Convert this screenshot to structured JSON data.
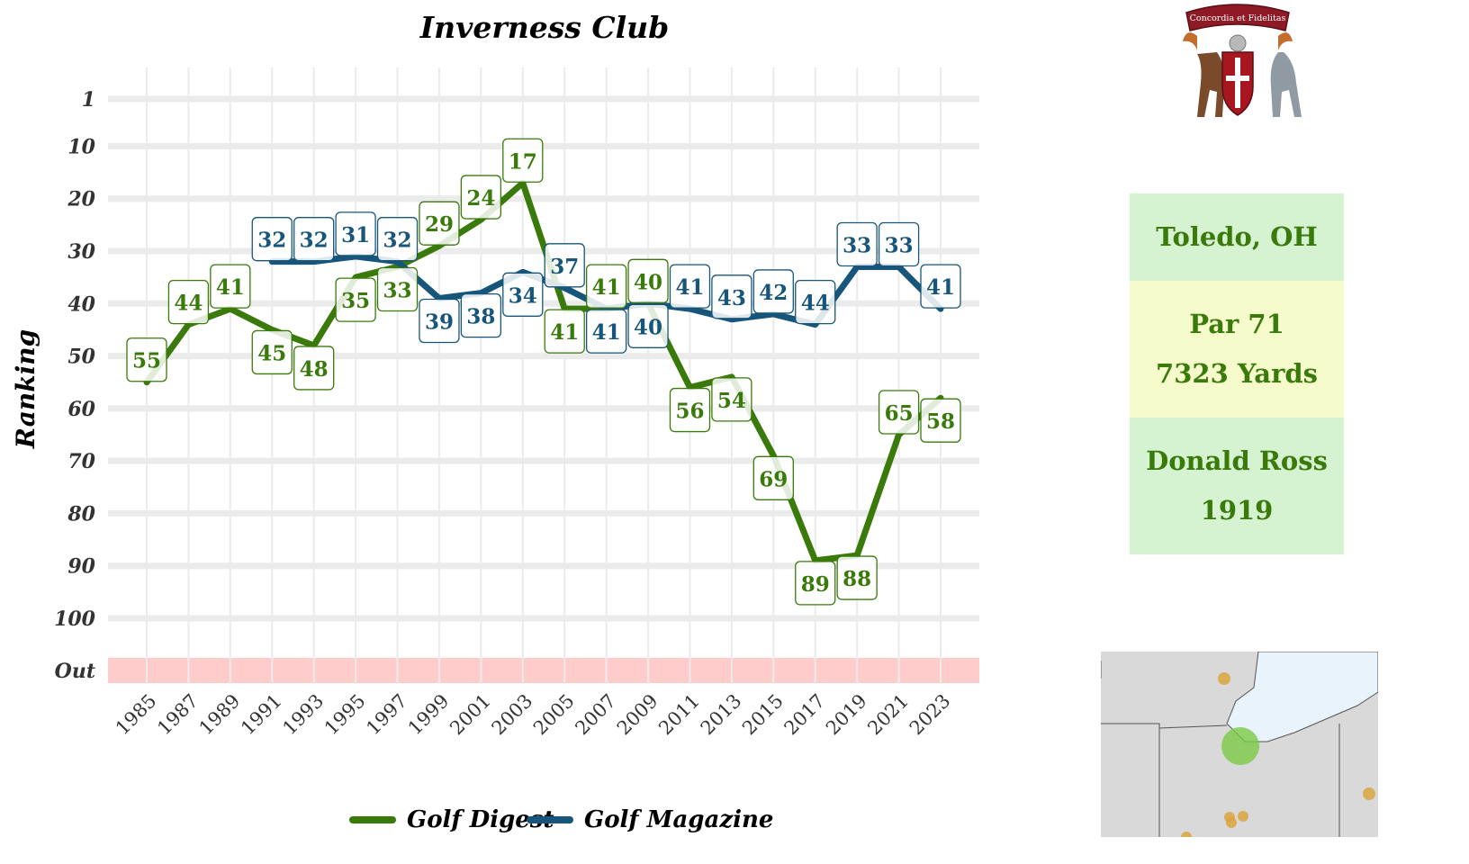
{
  "page": {
    "crest_motto": "Concordia et Fidelitas"
  },
  "info": {
    "location": "Toledo, OH",
    "par": "Par 71",
    "yards": "7323 Yards",
    "architect": "Donald Ross",
    "year": "1919"
  },
  "colors": {
    "golf_digest": "#3a7a0b",
    "golf_magazine": "#17567a",
    "out_band": "#ffcccc",
    "grid": "#ebebeb",
    "panel_green": "#d5f2d1",
    "panel_yellow": "#f6fbcb",
    "map_land": "#d9d9d9",
    "map_water": "#e8f3fc",
    "map_marker_current": "#7ac943",
    "map_marker_other": "#d9a53f"
  },
  "chart_data": {
    "type": "line",
    "title": "Inverness Club",
    "xlabel": "",
    "ylabel": "Ranking",
    "y_reversed": true,
    "ylim": [
      1,
      100
    ],
    "y_ticks": [
      "1",
      "10",
      "20",
      "30",
      "40",
      "50",
      "60",
      "70",
      "80",
      "90",
      "100",
      "Out"
    ],
    "x_ticks": [
      "1985",
      "1987",
      "1989",
      "1991",
      "1993",
      "1995",
      "1997",
      "1999",
      "2001",
      "2003",
      "2005",
      "2007",
      "2009",
      "2011",
      "2013",
      "2015",
      "2017",
      "2019",
      "2021",
      "2023"
    ],
    "legend_position": "bottom",
    "grid": true,
    "series": [
      {
        "name": "Golf Digest",
        "points": [
          {
            "x": 1985,
            "y": 55
          },
          {
            "x": 1987,
            "y": 44
          },
          {
            "x": 1989,
            "y": 41
          },
          {
            "x": 1991,
            "y": 45
          },
          {
            "x": 1993,
            "y": 48
          },
          {
            "x": 1995,
            "y": 35
          },
          {
            "x": 1997,
            "y": 33
          },
          {
            "x": 1999,
            "y": 29
          },
          {
            "x": 2001,
            "y": 24
          },
          {
            "x": 2003,
            "y": 17
          },
          {
            "x": 2005,
            "y": 41
          },
          {
            "x": 2007,
            "y": 41
          },
          {
            "x": 2009,
            "y": 40
          },
          {
            "x": 2011,
            "y": 56
          },
          {
            "x": 2013,
            "y": 54
          },
          {
            "x": 2015,
            "y": 69
          },
          {
            "x": 2017,
            "y": 89
          },
          {
            "x": 2019,
            "y": 88
          },
          {
            "x": 2021,
            "y": 65
          },
          {
            "x": 2023,
            "y": 58
          }
        ]
      },
      {
        "name": "Golf Magazine",
        "points": [
          {
            "x": 1991,
            "y": 32
          },
          {
            "x": 1993,
            "y": 32
          },
          {
            "x": 1995,
            "y": 31
          },
          {
            "x": 1997,
            "y": 32
          },
          {
            "x": 1999,
            "y": 39
          },
          {
            "x": 2001,
            "y": 38
          },
          {
            "x": 2003,
            "y": 34
          },
          {
            "x": 2005,
            "y": 37
          },
          {
            "x": 2007,
            "y": 41
          },
          {
            "x": 2009,
            "y": 40
          },
          {
            "x": 2011,
            "y": 41
          },
          {
            "x": 2013,
            "y": 43
          },
          {
            "x": 2015,
            "y": 42
          },
          {
            "x": 2017,
            "y": 44
          },
          {
            "x": 2019,
            "y": 33
          },
          {
            "x": 2021,
            "y": 33
          },
          {
            "x": 2023,
            "y": 41
          }
        ]
      }
    ]
  }
}
